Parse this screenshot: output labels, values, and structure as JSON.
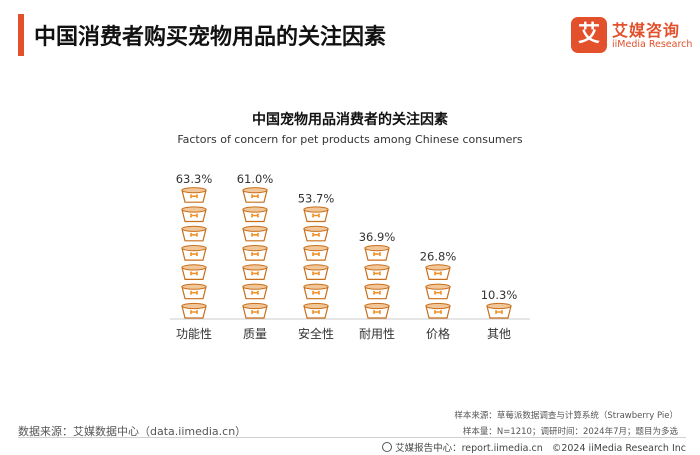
{
  "header": {
    "title": "中国消费者购买宠物用品的关注因素"
  },
  "logo": {
    "mark": "艾",
    "cn": "艾媒咨询",
    "en": "iiMedia Research"
  },
  "chart_data": {
    "type": "bar",
    "title": "中国宠物用品消费者的关注因素",
    "subtitle": "Factors of concern for pet products among Chinese consumers",
    "categories": [
      "功能性",
      "质量",
      "安全性",
      "耐用性",
      "价格",
      "其他"
    ],
    "values": [
      63.3,
      61.0,
      53.7,
      36.9,
      26.8,
      10.3
    ],
    "value_labels": [
      "63.3%",
      "61.0%",
      "53.7%",
      "36.9%",
      "26.8%",
      "10.3%"
    ],
    "unit": "%",
    "mark": "pet-bowl-icon",
    "colors": {
      "bowl_fill": "#ffffff",
      "bowl_stroke": "#c86f1c",
      "bowl_inner": "#f1c79a",
      "bone": "#f0922b",
      "baseline": "#cccccc"
    }
  },
  "footer": {
    "source": "数据来源：艾媒数据中心（data.iimedia.cn）",
    "sample_source": "样本来源：草莓派数据调查与计算系统（Strawberry Pie）",
    "sample_info": "样本量：N=1210；调研时间：2024年7月；题目为多选",
    "report_center": "艾媒报告中心：report.iimedia.cn",
    "copyright": "©2024  iiMedia Research  Inc"
  }
}
